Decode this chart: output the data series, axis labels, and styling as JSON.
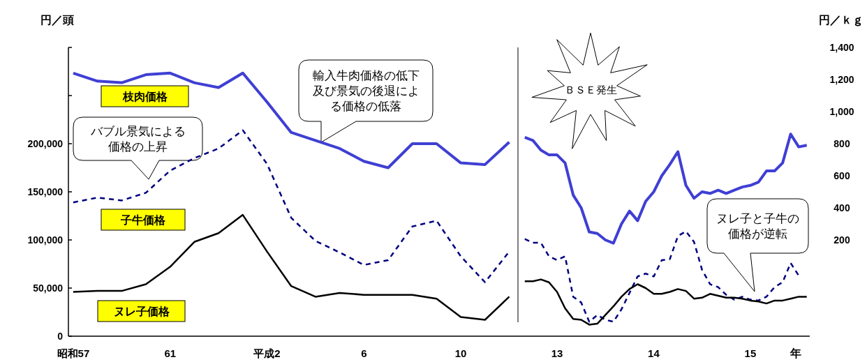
{
  "chart_data": [
    {
      "type": "line",
      "ylabel": "円／頭",
      "categories": [
        "昭和57",
        null,
        null,
        null,
        "61",
        null,
        null,
        null,
        "平成2",
        null,
        null,
        null,
        "6",
        null,
        null,
        null,
        "10",
        null,
        null
      ],
      "ylim": [
        0,
        300000
      ],
      "yticks": [
        0,
        {
          "value": 50000,
          "label": "50,000"
        },
        {
          "value": 100000,
          "label": "100,000"
        },
        {
          "value": 150000,
          "label": "150,000"
        },
        {
          "value": 200000,
          "label": "200,000"
        },
        {
          "value": 250000,
          "label": null
        },
        {
          "value": 300000,
          "label": null
        }
      ],
      "y2lim": [
        -400,
        1400
      ],
      "tick_labels": [
        "x",
        "y"
      ],
      "series": [
        {
          "name": "枝肉価格",
          "color": "#3f3fd4",
          "axis": "y2",
          "line_style": "solid",
          "values": [
            1240,
            1190,
            1180,
            1230,
            1240,
            1180,
            1150,
            1240,
            1060,
            870,
            820,
            770,
            690,
            650,
            800,
            800,
            680,
            670,
            810
          ]
        },
        {
          "name": "子牛価格",
          "color": "#000080",
          "line_style": "dashed",
          "values": [
            139000,
            144000,
            141000,
            149000,
            172000,
            185000,
            195000,
            214000,
            179000,
            123000,
            99000,
            87000,
            74000,
            79000,
            114000,
            120000,
            83000,
            56000,
            88000
          ]
        },
        {
          "name": "ヌレ子価格",
          "color": "#000000",
          "line_style": "solid",
          "values": [
            46000,
            47000,
            47000,
            54000,
            72000,
            98000,
            107000,
            126000,
            88000,
            52000,
            41000,
            45000,
            43000,
            43000,
            43000,
            39000,
            20000,
            17000,
            41000
          ]
        }
      ],
      "annotations": [
        "バブル景気による価格の上昇",
        "輸入牛肉価格の低下及び景気の後退による価格の低落"
      ]
    },
    {
      "type": "line",
      "y2label": "円／ｋｇ",
      "xlabel": "年",
      "categories": [
        null,
        null,
        null,
        null,
        "13",
        null,
        null,
        null,
        null,
        null,
        null,
        null,
        null,
        null,
        null,
        null,
        "14",
        null,
        null,
        null,
        null,
        null,
        null,
        null,
        null,
        null,
        null,
        null,
        "15",
        null,
        null,
        null,
        null,
        null,
        null,
        null
      ],
      "ylim": [
        0,
        300000
      ],
      "y2lim": [
        -400,
        1400
      ],
      "y2ticks": [
        200,
        400,
        600,
        800,
        {
          "value": 1000,
          "label": "1,000"
        },
        {
          "value": 1200,
          "label": "1,200"
        },
        {
          "value": 1400,
          "label": "1,400"
        }
      ],
      "tick_labels": [
        "x",
        "y2"
      ],
      "series": [
        {
          "color": "#3f3fd4",
          "axis": "y2",
          "line_style": "solid",
          "values": [
            840,
            820,
            760,
            730,
            730,
            680,
            480,
            400,
            250,
            240,
            200,
            180,
            300,
            380,
            320,
            440,
            500,
            600,
            670,
            750,
            540,
            460,
            500,
            490,
            510,
            490,
            510,
            530,
            540,
            560,
            630,
            630,
            680,
            860,
            780,
            790
          ]
        },
        {
          "color": "#000080",
          "line_style": "dashed",
          "values": [
            101000,
            97000,
            97000,
            83000,
            79000,
            83000,
            41000,
            35000,
            15000,
            22000,
            17000,
            15000,
            28000,
            45000,
            62000,
            65000,
            62000,
            79000,
            80000,
            104000,
            109000,
            98000,
            69000,
            54000,
            51000,
            43000,
            38000,
            41000,
            38000,
            37000,
            41000,
            51000,
            56000,
            76000,
            63000,
            null
          ]
        },
        {
          "color": "#000000",
          "line_style": "solid",
          "values": [
            57000,
            57000,
            59000,
            56000,
            46000,
            29000,
            18000,
            17000,
            12000,
            13000,
            22000,
            31000,
            41000,
            49000,
            54000,
            50000,
            44000,
            44000,
            46000,
            49000,
            47000,
            39000,
            40000,
            44000,
            42000,
            40000,
            40000,
            39000,
            37000,
            36000,
            34000,
            37000,
            37000,
            39000,
            41000,
            41000
          ]
        }
      ],
      "annotations": [
        "ＢＳＥ発生",
        "ヌレ子と子牛の価格が逆転"
      ]
    }
  ]
}
